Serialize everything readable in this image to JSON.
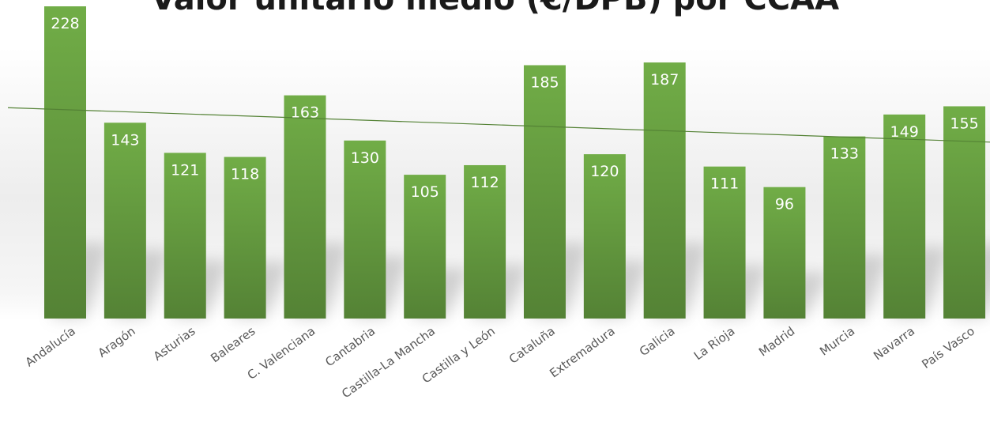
{
  "chart_data": {
    "type": "bar",
    "title": "Valor unitario medio (€/DPB) por CCAA",
    "categories": [
      "Andalucía",
      "Aragón",
      "Asturias",
      "Baleares",
      "C. Valenciana",
      "Cantabria",
      "Castilla-La Mancha",
      "Castilla y León",
      "Cataluña",
      "Extremadura",
      "Galicia",
      "La Rioja",
      "Madrid",
      "Murcia",
      "Navarra",
      "País Vasco"
    ],
    "values": [
      228,
      143,
      121,
      118,
      163,
      130,
      105,
      112,
      185,
      120,
      187,
      111,
      96,
      133,
      149,
      155
    ],
    "data_label_text": [
      "228",
      "143",
      "121",
      "118",
      "163",
      "130",
      "105",
      "112",
      "185",
      "120",
      "187",
      "111",
      "96",
      "133",
      "149",
      "155"
    ],
    "trendline": true,
    "grid": false,
    "legend": "none",
    "xlabel": "",
    "ylabel": "",
    "colors": {
      "bar_top": "#71ad47",
      "bar_bottom": "#548235",
      "trendline": "#548235"
    }
  }
}
